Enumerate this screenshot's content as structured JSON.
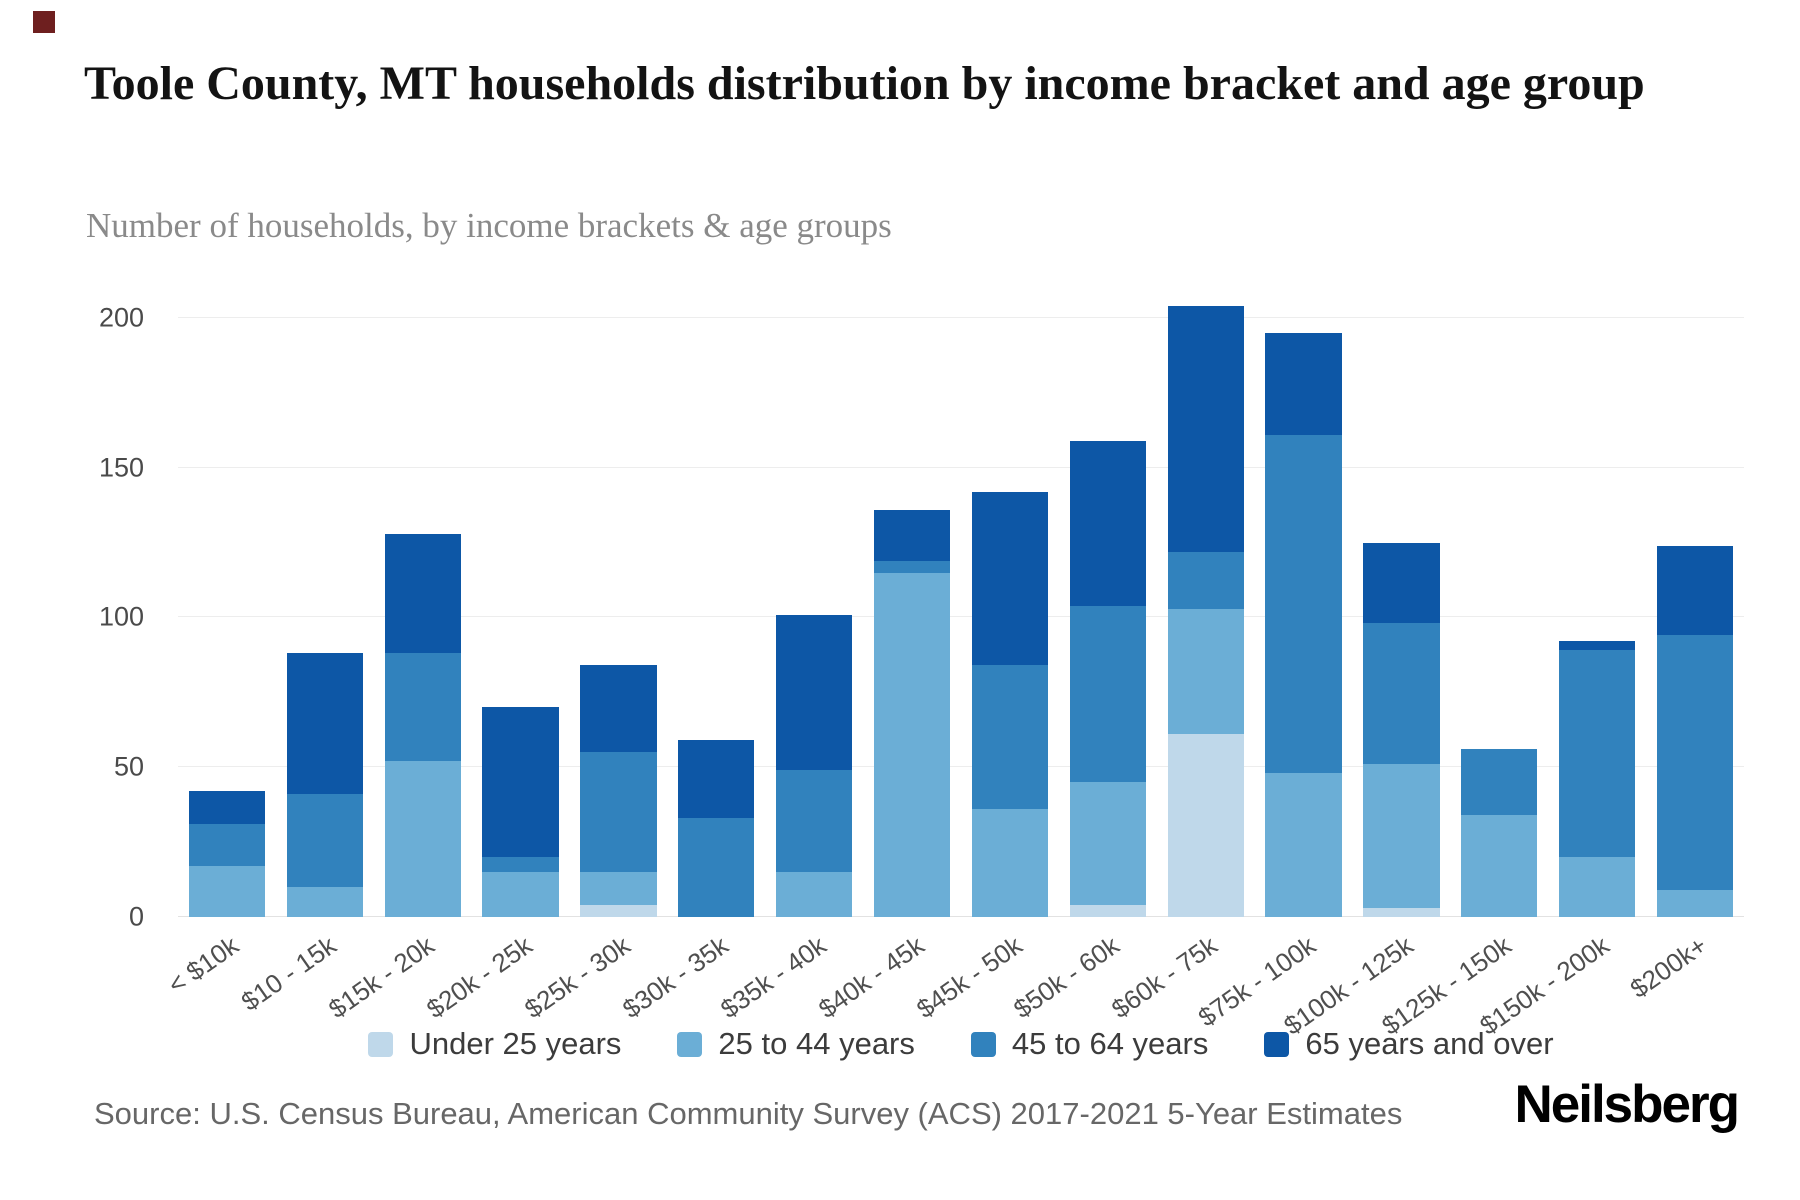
{
  "title": "Toole County, MT households distribution by income bracket and age group",
  "subtitle": "Number of households, by income brackets & age groups",
  "source": "Source: U.S. Census Bureau, American Community Survey (ACS) 2017-2021 5-Year Estimates",
  "brand": "Neilsberg",
  "decor": {
    "corner_color": "#6e1f1f"
  },
  "chart_data": {
    "type": "bar",
    "stacked": true,
    "title": "Toole County, MT households distribution by income bracket and age group",
    "subtitle": "Number of households, by income brackets & age groups",
    "xlabel": "",
    "ylabel": "",
    "grid": "horizontal",
    "legend_position": "bottom",
    "yticks": [
      0,
      50,
      100,
      150,
      200
    ],
    "ylim": [
      0,
      210
    ],
    "categories": [
      "< $10k",
      "$10 - 15k",
      "$15k - 20k",
      "$20k - 25k",
      "$25k - 30k",
      "$30k - 35k",
      "$35k - 40k",
      "$40k - 45k",
      "$45k - 50k",
      "$50k - 60k",
      "$60k - 75k",
      "$75k - 100k",
      "$100k - 125k",
      "$125k - 150k",
      "$150k - 200k",
      "$200k+"
    ],
    "series": [
      {
        "name": "Under 25 years",
        "color": "#bfd8ea",
        "values": [
          0,
          0,
          0,
          0,
          4,
          0,
          0,
          0,
          0,
          4,
          61,
          0,
          3,
          0,
          0,
          0
        ]
      },
      {
        "name": "25 to 44 years",
        "color": "#6baed6",
        "values": [
          17,
          10,
          52,
          15,
          11,
          0,
          15,
          115,
          36,
          41,
          42,
          48,
          48,
          34,
          20,
          9
        ]
      },
      {
        "name": "45 to 64 years",
        "color": "#3182bd",
        "values": [
          14,
          31,
          36,
          5,
          40,
          33,
          34,
          4,
          48,
          59,
          19,
          113,
          47,
          22,
          69,
          85
        ]
      },
      {
        "name": "65 years and over",
        "color": "#0d57a6",
        "values": [
          11,
          47,
          40,
          50,
          29,
          26,
          52,
          17,
          58,
          55,
          82,
          34,
          27,
          0,
          3,
          30
        ]
      }
    ],
    "totals": [
      42,
      88,
      128,
      70,
      84,
      59,
      101,
      136,
      142,
      159,
      204,
      195,
      125,
      56,
      92,
      124
    ]
  }
}
